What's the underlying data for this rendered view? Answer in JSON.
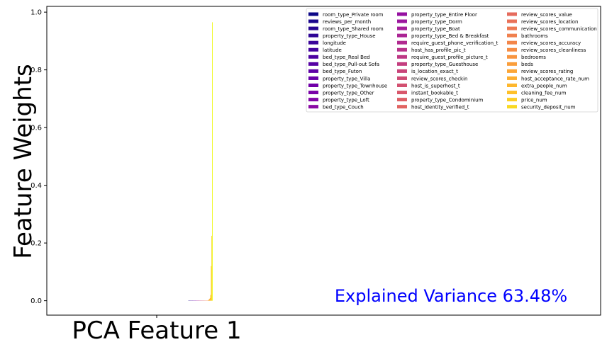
{
  "chart_data": {
    "type": "bar",
    "ylabel": "Feature Weights",
    "categories": [
      "PCA Feature 1"
    ],
    "ylim": [
      -0.05,
      1.02
    ],
    "yticks": [
      "0.0",
      "0.2",
      "0.4",
      "0.6",
      "0.8",
      "1.0"
    ],
    "annotation": "Explained Variance 63.48%",
    "annotation_color": "#0000ff",
    "legend_placement": "top-right",
    "grid": false,
    "series": [
      {
        "name": "room_type_Private room",
        "value": 0.0002,
        "color": "#0d0887"
      },
      {
        "name": "reviews_per_month",
        "value": 0.0002,
        "color": "#1b068d"
      },
      {
        "name": "room_type_Shared room",
        "value": 0.0002,
        "color": "#260591"
      },
      {
        "name": "property_type_House",
        "value": 0.0002,
        "color": "#2f0596"
      },
      {
        "name": "longitude",
        "value": 0.0002,
        "color": "#3a049a"
      },
      {
        "name": "latitude",
        "value": 0.0002,
        "color": "#43039e"
      },
      {
        "name": "bed_type_Real Bed",
        "value": 0.0002,
        "color": "#4c02a1"
      },
      {
        "name": "bed_type_Pull-out Sofa",
        "value": 0.0002,
        "color": "#5602a4"
      },
      {
        "name": "bed_type_Futon",
        "value": 0.0002,
        "color": "#5e01a6"
      },
      {
        "name": "property_type_Villa",
        "value": 0.0002,
        "color": "#6700a8"
      },
      {
        "name": "property_type_Townhouse",
        "value": 0.0002,
        "color": "#7100a8"
      },
      {
        "name": "property_type_Other",
        "value": 0.0002,
        "color": "#7a02a8"
      },
      {
        "name": "property_type_Loft",
        "value": 0.0002,
        "color": "#8305a7"
      },
      {
        "name": "bed_type_Couch",
        "value": 0.0002,
        "color": "#8b0aa5"
      },
      {
        "name": "property_type_Entire Floor",
        "value": 0.0002,
        "color": "#9511a1"
      },
      {
        "name": "property_type_Dorm",
        "value": 0.0002,
        "color": "#9c179e"
      },
      {
        "name": "property_type_Boat",
        "value": 0.0002,
        "color": "#a41e9a"
      },
      {
        "name": "property_type_Bed & Breakfast",
        "value": 0.0002,
        "color": "#ab2494"
      },
      {
        "name": "require_guest_phone_verification_t",
        "value": 0.0002,
        "color": "#b12a90"
      },
      {
        "name": "host_has_profile_pic_t",
        "value": 0.0002,
        "color": "#b8328a"
      },
      {
        "name": "require_guest_profile_picture_t",
        "value": 0.0002,
        "color": "#be3885"
      },
      {
        "name": "property_type_Guesthouse",
        "value": 0.0002,
        "color": "#c43e7f"
      },
      {
        "name": "is_location_exact_t",
        "value": 0.0002,
        "color": "#c9447a"
      },
      {
        "name": "review_scores_checkin",
        "value": 0.0002,
        "color": "#ce4b75"
      },
      {
        "name": "host_is_superhost_t",
        "value": 0.0002,
        "color": "#d35171"
      },
      {
        "name": "instant_bookable_t",
        "value": 0.0002,
        "color": "#d8576b"
      },
      {
        "name": "property_type_Condominium",
        "value": 0.0002,
        "color": "#dd5e66"
      },
      {
        "name": "host_identity_verified_t",
        "value": 0.0002,
        "color": "#e16462"
      },
      {
        "name": "review_scores_value",
        "value": 0.0003,
        "color": "#e56b5d"
      },
      {
        "name": "review_scores_location",
        "value": 0.0003,
        "color": "#e97158"
      },
      {
        "name": "review_scores_communication",
        "value": 0.0003,
        "color": "#ed7953"
      },
      {
        "name": "bathrooms",
        "value": 0.0004,
        "color": "#f0804e"
      },
      {
        "name": "review_scores_accuracy",
        "value": 0.0004,
        "color": "#f3864a"
      },
      {
        "name": "review_scores_cleanliness",
        "value": 0.0005,
        "color": "#f68d45"
      },
      {
        "name": "bedrooms",
        "value": 0.001,
        "color": "#f89540"
      },
      {
        "name": "beds",
        "value": 0.002,
        "color": "#fa9e3b"
      },
      {
        "name": "review_scores_rating",
        "value": 0.004,
        "color": "#fca636"
      },
      {
        "name": "host_acceptance_rate_num",
        "value": 0.006,
        "color": "#fdaf31"
      },
      {
        "name": "extra_people_num",
        "value": 0.009,
        "color": "#feb72d"
      },
      {
        "name": "cleaning_fee_num",
        "value": 0.02,
        "color": "#fec029"
      },
      {
        "name": "price_num",
        "value": 0.12,
        "color": "#fcce25"
      },
      {
        "name": "security_deposit_num",
        "value": 0.225,
        "color": "#f9d924"
      },
      {
        "name": "",
        "value": 0.965,
        "color": "#f0f921"
      }
    ]
  }
}
